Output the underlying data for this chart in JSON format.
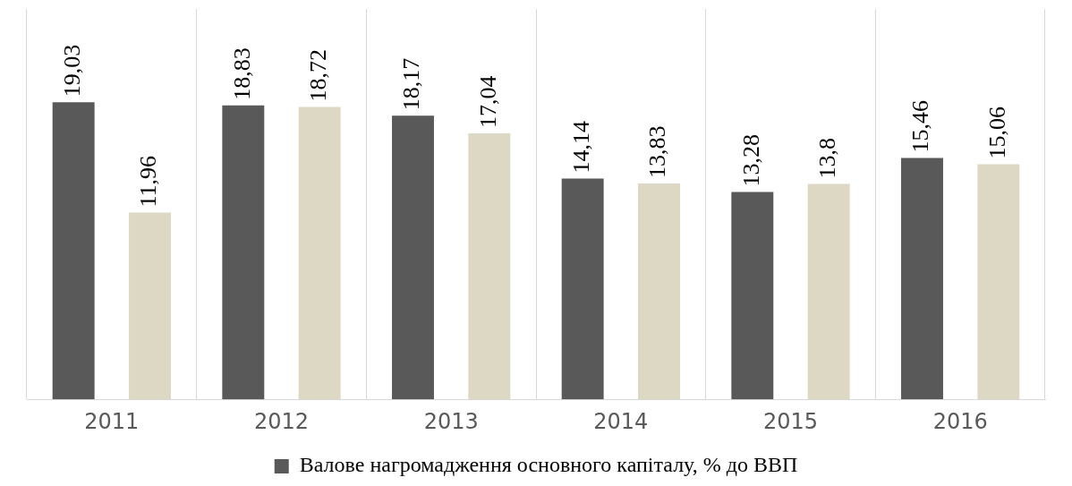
{
  "chart_data": {
    "type": "bar",
    "categories": [
      "2011",
      "2012",
      "2013",
      "2014",
      "2015",
      "2016"
    ],
    "series": [
      {
        "name": "Валове нагромадження основного капіталу, % до ВВП",
        "color": "#595959",
        "values": [
          19.03,
          18.83,
          18.17,
          14.14,
          13.28,
          15.46
        ],
        "value_labels": [
          "19,03",
          "18,83",
          "18,17",
          "14,14",
          "13,28",
          "15,46"
        ]
      },
      {
        "color": "#ddd8c4",
        "values": [
          11.96,
          18.72,
          17.04,
          13.83,
          13.8,
          15.06
        ],
        "value_labels": [
          "11,96",
          "18,72",
          "17,04",
          "13,83",
          "13,8",
          "15,06"
        ]
      }
    ],
    "grid": "x",
    "legend": "bottom"
  }
}
